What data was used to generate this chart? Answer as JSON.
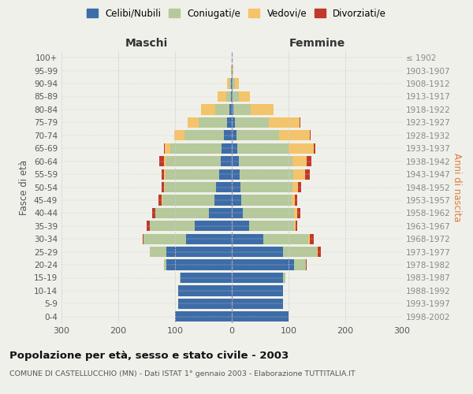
{
  "age_groups": [
    "0-4",
    "5-9",
    "10-14",
    "15-19",
    "20-24",
    "25-29",
    "30-34",
    "35-39",
    "40-44",
    "45-49",
    "50-54",
    "55-59",
    "60-64",
    "65-69",
    "70-74",
    "75-79",
    "80-84",
    "85-89",
    "90-94",
    "95-99",
    "100+"
  ],
  "birth_years": [
    "1998-2002",
    "1993-1997",
    "1988-1992",
    "1983-1987",
    "1978-1982",
    "1973-1977",
    "1968-1972",
    "1963-1967",
    "1958-1962",
    "1953-1957",
    "1948-1952",
    "1943-1947",
    "1938-1942",
    "1933-1937",
    "1928-1932",
    "1923-1927",
    "1918-1922",
    "1913-1917",
    "1908-1912",
    "1903-1907",
    "≤ 1902"
  ],
  "colors": {
    "celibe": "#3d6da8",
    "coniugato": "#b5c99a",
    "vedovo": "#f5c469",
    "divorziato": "#c0392b"
  },
  "males": {
    "celibe": [
      100,
      95,
      95,
      90,
      115,
      115,
      80,
      65,
      40,
      30,
      28,
      22,
      20,
      18,
      14,
      8,
      4,
      2,
      1,
      0,
      0
    ],
    "coniugato": [
      0,
      0,
      0,
      2,
      5,
      30,
      75,
      80,
      95,
      92,
      90,
      95,
      95,
      90,
      70,
      50,
      25,
      8,
      3,
      1,
      0
    ],
    "vedovo": [
      0,
      0,
      0,
      0,
      0,
      0,
      0,
      0,
      0,
      1,
      1,
      2,
      5,
      10,
      18,
      20,
      25,
      15,
      5,
      1,
      0
    ],
    "divorziato": [
      0,
      0,
      0,
      0,
      0,
      0,
      2,
      5,
      5,
      6,
      5,
      5,
      8,
      2,
      0,
      0,
      0,
      0,
      0,
      0,
      0
    ]
  },
  "females": {
    "nubile": [
      100,
      90,
      90,
      90,
      110,
      90,
      55,
      30,
      20,
      16,
      15,
      14,
      12,
      10,
      8,
      5,
      3,
      2,
      1,
      0,
      0
    ],
    "coniugata": [
      0,
      0,
      0,
      5,
      20,
      60,
      80,
      80,
      90,
      90,
      92,
      95,
      95,
      90,
      75,
      60,
      30,
      10,
      4,
      1,
      0
    ],
    "vedova": [
      0,
      0,
      0,
      0,
      0,
      2,
      2,
      2,
      5,
      5,
      10,
      20,
      25,
      45,
      55,
      55,
      40,
      20,
      8,
      2,
      0
    ],
    "divorziata": [
      0,
      0,
      0,
      0,
      2,
      5,
      8,
      3,
      6,
      4,
      5,
      8,
      8,
      2,
      1,
      1,
      1,
      0,
      0,
      0,
      0
    ]
  },
  "xlim": 300,
  "title": "Popolazione per età, sesso e stato civile - 2003",
  "subtitle": "COMUNE DI CASTELLUCCHIO (MN) - Dati ISTAT 1° gennaio 2003 - Elaborazione TUTTITALIA.IT",
  "xlabel_left": "Maschi",
  "xlabel_right": "Femmine",
  "ylabel_left": "Fasce di età",
  "ylabel_right": "Anni di nascita",
  "legend_labels": [
    "Celibi/Nubili",
    "Coniugati/e",
    "Vedovi/e",
    "Divorziati/e"
  ],
  "bg_color": "#f0f0eb",
  "plot_bg": "#f0f0eb",
  "grid_color": "#cccccc"
}
